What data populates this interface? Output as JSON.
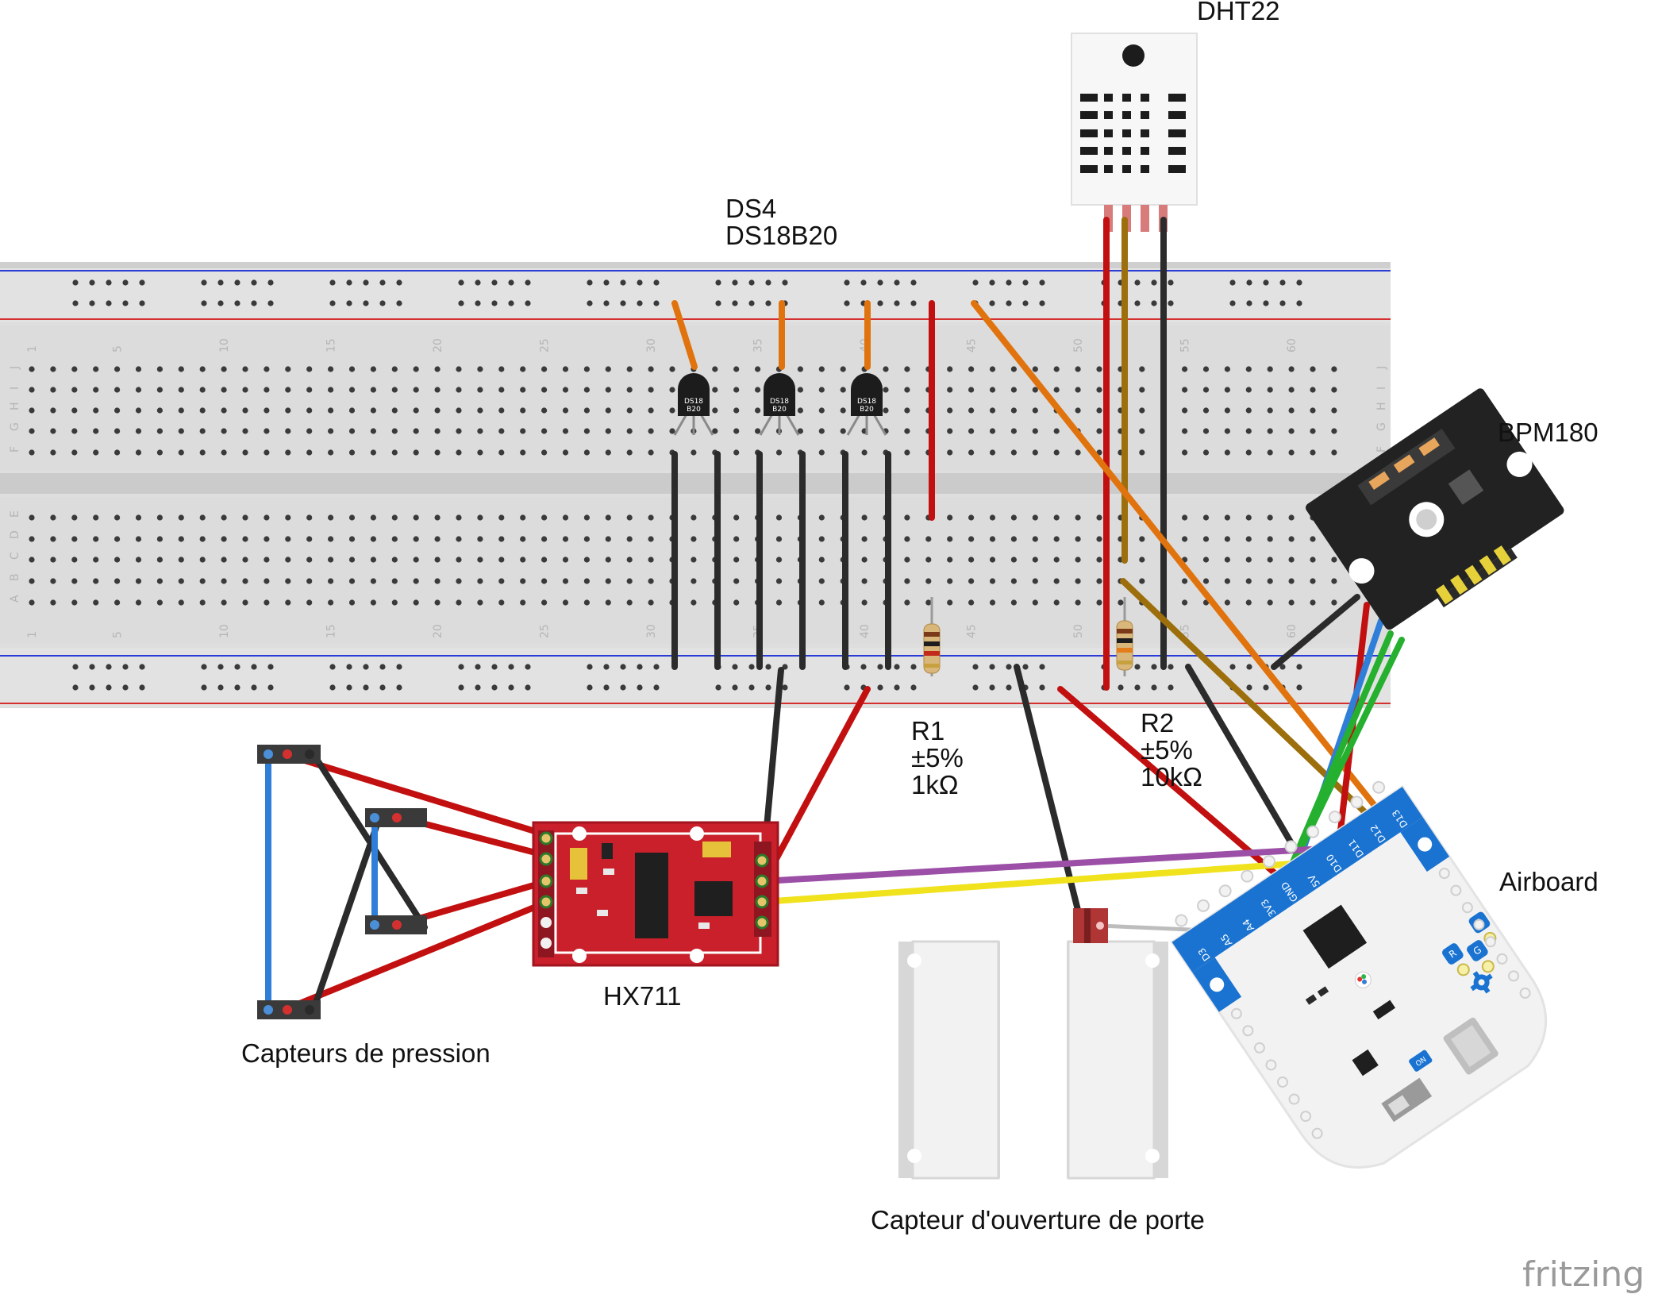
{
  "labels": {
    "dht22": "DHT22",
    "ds4_line1": "DS4",
    "ds4_line2": "DS18B20",
    "bpm180": "BPM180",
    "r1_name": "R1",
    "r1_tol": "±5%",
    "r1_val": "1kΩ",
    "r2_name": "R2",
    "r2_tol": "±5%",
    "r2_val": "10kΩ",
    "airboard": "Airboard",
    "hx711": "HX711",
    "pressure": "Capteurs de pression",
    "door": "Capteur d'ouverture de porte",
    "watermark": "fritzing"
  },
  "ds18b20_chip_text": [
    "DS18",
    "B20"
  ],
  "airboard_pins": [
    "D3",
    "A5",
    "A4",
    "3V3",
    "GND",
    "5V",
    "D10",
    "D11",
    "D12",
    "D13"
  ],
  "airboard_badges": [
    "R",
    "G",
    "B"
  ],
  "airboard_switch": "ON",
  "breadboard_column_numbers": [
    "1",
    "5",
    "10",
    "15",
    "20",
    "25",
    "30",
    "35",
    "40",
    "45",
    "50",
    "55",
    "60"
  ],
  "breadboard_row_letters_top": [
    "J",
    "I",
    "H",
    "G",
    "F"
  ],
  "breadboard_row_letters_bottom": [
    "E",
    "D",
    "C",
    "B",
    "A"
  ],
  "wire_colors": {
    "black": "#2b2b2b",
    "red": "#c21010",
    "orange": "#e0730e",
    "olive": "#9c6f0c",
    "blue": "#2f7fd8",
    "green": "#25b02f",
    "purple": "#9b4fa6",
    "yellow": "#f0e21c",
    "gray": "#bdbdbd"
  },
  "board_colors": {
    "breadboard": "#dcdcdc",
    "hx711_pcb": "#c9202b",
    "bpm180_pcb": "#222222",
    "airboard_body": "#f3f3f3",
    "airboard_header": "#1a73d1"
  }
}
